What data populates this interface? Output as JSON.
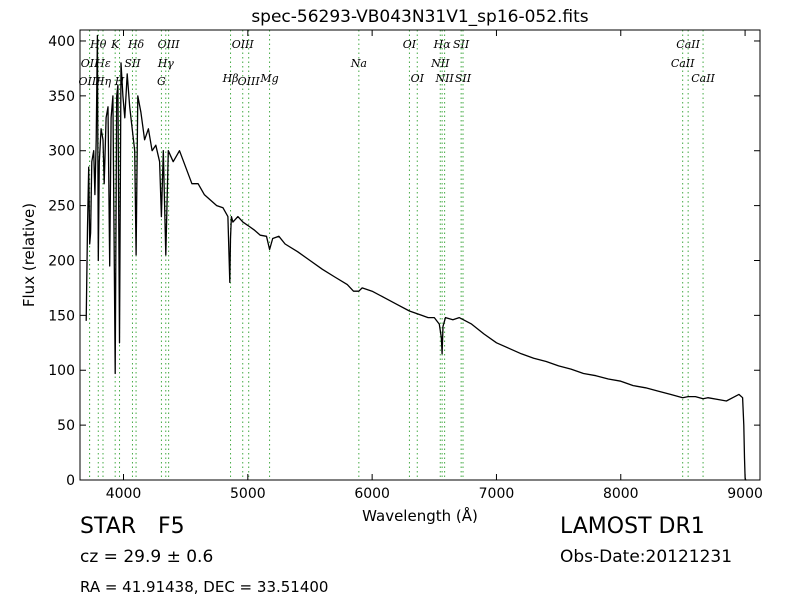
{
  "chart_data": {
    "type": "line",
    "title": "spec-56293-VB043N31V1_sp16-052.fits",
    "xlabel": "Wavelength (Å)",
    "ylabel": "Flux (relative)",
    "xlim": [
      3650,
      9120
    ],
    "ylim": [
      0,
      410
    ],
    "x_ticks": [
      4000,
      5000,
      6000,
      7000,
      8000,
      9000
    ],
    "x_tick_labels": [
      "4000",
      "5000",
      "6000",
      "7000",
      "8000",
      "9000"
    ],
    "y_ticks": [
      0,
      50,
      100,
      150,
      200,
      250,
      300,
      350,
      400
    ],
    "y_tick_labels": [
      "0",
      "50",
      "100",
      "150",
      "200",
      "250",
      "300",
      "350",
      "400"
    ],
    "grid": false,
    "line_color": "#000000",
    "marker_color": "#44aa44",
    "series": [
      {
        "x": [
          3700,
          3710,
          3720,
          3728,
          3735,
          3745,
          3760,
          3770,
          3780,
          3790,
          3797,
          3805,
          3820,
          3835,
          3845,
          3860,
          3875,
          3889,
          3900,
          3915,
          3933,
          3945,
          3955,
          3968,
          3980,
          3995,
          4010,
          4030,
          4050,
          4070,
          4090,
          4101,
          4115,
          4140,
          4170,
          4200,
          4230,
          4260,
          4290,
          4305,
          4320,
          4340,
          4360,
          4400,
          4450,
          4500,
          4550,
          4600,
          4650,
          4700,
          4750,
          4800,
          4840,
          4855,
          4861,
          4868,
          4880,
          4920,
          4960,
          5000,
          5050,
          5100,
          5150,
          5175,
          5200,
          5250,
          5300,
          5400,
          5500,
          5600,
          5700,
          5800,
          5850,
          5893,
          5920,
          6000,
          6100,
          6200,
          6300,
          6400,
          6450,
          6500,
          6540,
          6556,
          6563,
          6570,
          6590,
          6650,
          6700,
          6800,
          6900,
          7000,
          7100,
          7200,
          7300,
          7400,
          7500,
          7600,
          7700,
          7800,
          7900,
          8000,
          8100,
          8200,
          8300,
          8400,
          8498,
          8542,
          8600,
          8662,
          8700,
          8800,
          8850,
          8900,
          8950,
          8980,
          8990,
          8995,
          9000,
          9005,
          9010
        ],
        "y": [
          145,
          230,
          285,
          215,
          225,
          290,
          300,
          260,
          310,
          405,
          200,
          290,
          320,
          310,
          270,
          330,
          340,
          195,
          330,
          350,
          97,
          350,
          360,
          125,
          380,
          350,
          330,
          370,
          340,
          320,
          300,
          205,
          350,
          335,
          310,
          320,
          300,
          305,
          290,
          240,
          300,
          205,
          300,
          290,
          300,
          285,
          270,
          270,
          260,
          255,
          250,
          248,
          240,
          180,
          220,
          240,
          235,
          240,
          235,
          232,
          228,
          223,
          222,
          210,
          220,
          222,
          215,
          208,
          200,
          192,
          185,
          178,
          172,
          172,
          175,
          172,
          166,
          160,
          154,
          150,
          148,
          148,
          142,
          130,
          115,
          140,
          148,
          146,
          148,
          142,
          133,
          125,
          120,
          115,
          111,
          108,
          104,
          101,
          97,
          95,
          92,
          90,
          86,
          84,
          81,
          78,
          75,
          76,
          76,
          74,
          75,
          73,
          72,
          75,
          78,
          75,
          50,
          20,
          2,
          0,
          0
        ]
      }
    ],
    "line_markers": [
      {
        "label": "Hθ",
        "x": 3797,
        "row": 0,
        "color": "#44aa44"
      },
      {
        "label": "K",
        "x": 3933,
        "row": 0,
        "color": "#44aa44"
      },
      {
        "label": "Hδ",
        "x": 4101,
        "row": 0,
        "color": "#44aa44"
      },
      {
        "label": "OIII",
        "x": 4363,
        "row": 0,
        "color": "#44aa44"
      },
      {
        "label": "OIII",
        "x": 4959,
        "row": 0,
        "color": "#44aa44"
      },
      {
        "label": "OI",
        "x": 6300,
        "row": 0,
        "color": "#44aa44"
      },
      {
        "label": "Hα",
        "x": 6563,
        "row": 0,
        "color": "#44aa44"
      },
      {
        "label": "SII",
        "x": 6716,
        "row": 0,
        "color": "#44aa44"
      },
      {
        "label": "CaII",
        "x": 8542,
        "row": 0,
        "color": "#44aa44"
      },
      {
        "label": "OII",
        "x": 3727,
        "row": 1,
        "color": "#44aa44"
      },
      {
        "label": "Hε",
        "x": 3835,
        "row": 1,
        "color": "#44aa44"
      },
      {
        "label": "SII",
        "x": 4072,
        "row": 1,
        "color": "#44aa44"
      },
      {
        "label": "Hγ",
        "x": 4340,
        "row": 1,
        "color": "#44aa44"
      },
      {
        "label": "Na",
        "x": 5893,
        "row": 1,
        "color": "#44aa44"
      },
      {
        "label": "NII",
        "x": 6548,
        "row": 1,
        "color": "#44aa44"
      },
      {
        "label": "CaII",
        "x": 8498,
        "row": 1,
        "color": "#44aa44"
      },
      {
        "label": "OIII",
        "x": 3727,
        "row": 2,
        "color": "#44aa44"
      },
      {
        "label": "Hη",
        "x": 3835,
        "row": 2,
        "color": "#44aa44"
      },
      {
        "label": "H",
        "x": 3968,
        "row": 2,
        "color": "#44aa44"
      },
      {
        "label": "G",
        "x": 4305,
        "row": 2,
        "color": "#44aa44"
      },
      {
        "label": "OIII",
        "x": 5007,
        "row": 2,
        "color": "#44aa44"
      },
      {
        "label": "Hβ",
        "x": 4861,
        "row": 3,
        "color": "#44aa44"
      },
      {
        "label": "Mg",
        "x": 5175,
        "row": 3,
        "color": "#44aa44"
      },
      {
        "label": "OI",
        "x": 6363,
        "row": 3,
        "color": "#44aa44"
      },
      {
        "label": "NII",
        "x": 6583,
        "row": 3,
        "color": "#44aa44"
      },
      {
        "label": "SII",
        "x": 6731,
        "row": 3,
        "color": "#44aa44"
      },
      {
        "label": "CaII",
        "x": 8662,
        "row": 3,
        "color": "#44aa44"
      }
    ]
  },
  "footer": {
    "class_label": "STAR",
    "subclass_label": "F5",
    "redshift": "cz = 29.9 ± 0.6",
    "coords": "RA = 41.91438, DEC = 33.51400",
    "survey": "LAMOST DR1",
    "obs_date": "Obs-Date:20121231"
  }
}
